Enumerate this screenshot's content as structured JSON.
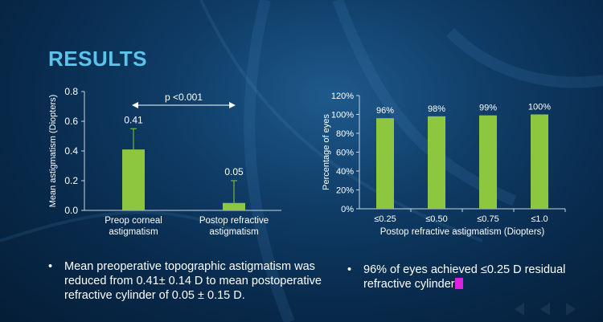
{
  "slide": {
    "title": "RESULTS"
  },
  "colors": {
    "bar": "#8dc63f",
    "title": "#5cc3ea",
    "error_bar": "#8dc63f"
  },
  "chart_data": [
    {
      "type": "bar",
      "title": "",
      "xlabel": "",
      "ylabel": "Mean astigmatism (Diopters)",
      "categories": [
        "Preop corneal astigmatism",
        "Postop refractive astigmatism"
      ],
      "category_lines": [
        [
          "Preop corneal",
          "astigmatism"
        ],
        [
          "Postop refractive",
          "astigmatism"
        ]
      ],
      "values": [
        0.41,
        0.05
      ],
      "value_labels": [
        "0.41",
        "0.05"
      ],
      "error_plus": [
        0.14,
        0.15
      ],
      "ylim": [
        0,
        0.8
      ],
      "yticks": [
        0,
        0.2,
        0.4,
        0.6,
        0.8
      ],
      "ytick_labels": [
        "0.0",
        "0.2",
        "0.4",
        "0.6",
        "0.8"
      ],
      "annotation": "p <0.001",
      "grid": false
    },
    {
      "type": "bar",
      "title": "",
      "xlabel": "Postop refractive astigmatism (Diopters)",
      "ylabel": "Percentage of eyes",
      "categories": [
        "≤0.25",
        "≤0.50",
        "≤0.75",
        "≤1.0"
      ],
      "values": [
        96,
        98,
        99,
        100
      ],
      "value_labels": [
        "96%",
        "98%",
        "99%",
        "100%"
      ],
      "ylim": [
        0,
        120
      ],
      "yticks": [
        0,
        20,
        40,
        60,
        80,
        100,
        120
      ],
      "ytick_labels": [
        "0%",
        "20%",
        "40%",
        "60%",
        "80%",
        "100%",
        "120%"
      ],
      "grid": false
    }
  ],
  "bullets": {
    "symbol": "•",
    "left": "Mean preoperative topographic astigmatism was reduced from 0.41± 0.14 D to mean postoperative refractive cylinder of 0.05 ± 0.15 D.",
    "right": "96% of eyes achieved ≤0.25 D residual refractive cylinder"
  }
}
